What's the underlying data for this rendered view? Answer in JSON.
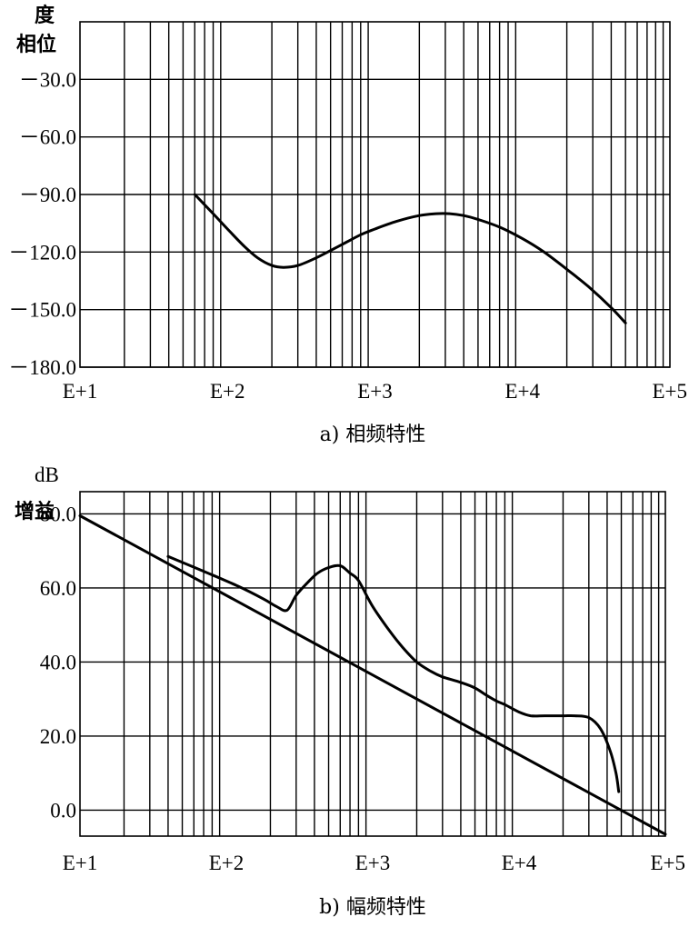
{
  "chart_data": [
    {
      "type": "line",
      "caption": "a) 相频特性",
      "ylabel": "相位",
      "yunit": "度",
      "xscale": "log",
      "xlim": [
        10,
        100000
      ],
      "ylim": [
        -180,
        0
      ],
      "xticks": [
        10,
        100,
        1000,
        10000,
        100000
      ],
      "xtick_labels": [
        "E+1",
        "E+2",
        "E+3",
        "E+4",
        "E+5"
      ],
      "yticks": [
        -30,
        -60,
        -90,
        -120,
        -150,
        -180
      ],
      "ytick_labels": [
        "－30.0",
        "－60.0",
        "－90.0",
        "－120.0",
        "－150.0",
        "－180.0"
      ],
      "grid": true,
      "series": [
        {
          "x": [
            60,
            80,
            100,
            130,
            160,
            200,
            240,
            300,
            400,
            600,
            800,
            1000,
            1400,
            2000,
            2600,
            3200,
            4000,
            5000,
            7000,
            10000,
            14000,
            20000,
            28000,
            40000,
            50000
          ],
          "y": [
            -90,
            -100,
            -108,
            -117,
            -123,
            -127,
            -128,
            -127,
            -123,
            -116,
            -111,
            -108,
            -104,
            -101,
            -100,
            -100,
            -101,
            -103,
            -107,
            -113,
            -120,
            -129,
            -138,
            -149,
            -157
          ]
        }
      ]
    },
    {
      "type": "line",
      "caption": "b) 幅频特性",
      "ylabel": "增益",
      "yunit": "dB",
      "xscale": "log",
      "xlim": [
        10,
        100000
      ],
      "ylim": [
        -7,
        86
      ],
      "xticks": [
        10,
        100,
        1000,
        10000,
        100000
      ],
      "xtick_labels": [
        "E+1",
        "E+2",
        "E+3",
        "E+4",
        "E+5"
      ],
      "yticks": [
        80,
        60,
        40,
        20,
        0
      ],
      "ytick_labels": [
        "80.0",
        "60.0",
        "40.0",
        "20.0",
        "0.0"
      ],
      "grid": true,
      "series": [
        {
          "x": [
            10,
            100000
          ],
          "y": [
            79.5,
            -6.5
          ]
        },
        {
          "x": [
            40,
            70,
            120,
            180,
            220,
            260,
            300,
            360,
            420,
            500,
            600,
            700,
            800,
            1000,
            1300,
            1600,
            2000,
            2500,
            3000,
            4000,
            5000,
            6000,
            7000,
            8000,
            10000,
            12000,
            15000,
            20000,
            24000,
            30000,
            36000,
            42000,
            46000,
            48000
          ],
          "y": [
            68.5,
            64.5,
            60.5,
            57,
            55,
            54,
            58,
            61.5,
            64,
            65.5,
            66,
            64,
            62,
            55,
            48.5,
            44,
            40,
            37.5,
            36,
            34.5,
            33,
            31,
            29.5,
            28.5,
            26.5,
            25.5,
            25.5,
            25.5,
            25.5,
            25,
            22,
            16,
            10,
            5
          ]
        }
      ]
    }
  ]
}
